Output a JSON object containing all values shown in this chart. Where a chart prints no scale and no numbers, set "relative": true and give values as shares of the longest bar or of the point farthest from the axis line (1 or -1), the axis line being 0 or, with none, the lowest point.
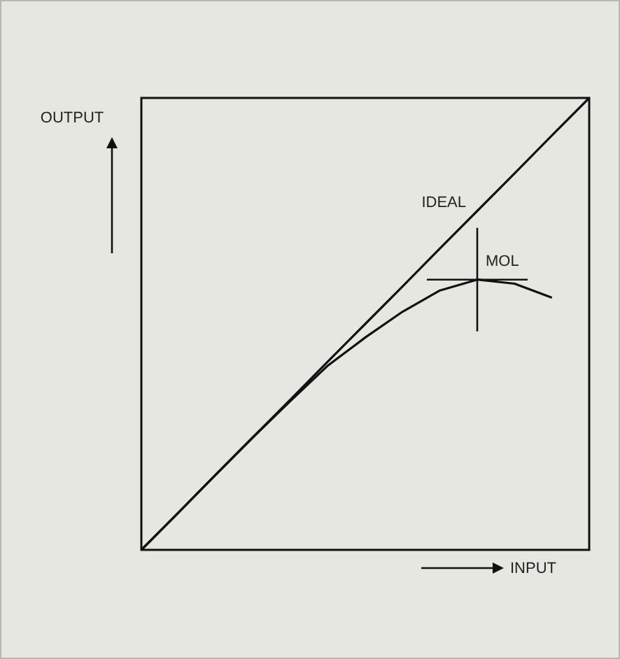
{
  "chart_data": {
    "type": "line",
    "relative": true,
    "xlabel": "INPUT",
    "ylabel": "OUTPUT",
    "categories": [
      null,
      null,
      null,
      null,
      null,
      null,
      null,
      null,
      null,
      null,
      null,
      null,
      null
    ],
    "series": [
      {
        "name": "IDEAL",
        "color": "#111111",
        "values": [
          0,
          0.083,
          0.167,
          0.25,
          0.333,
          0.417,
          0.5,
          0.583,
          0.667,
          0.75,
          0.833,
          0.917,
          1
        ]
      },
      {
        "color": "#111111",
        "values": [
          0,
          0.083,
          0.167,
          0.25,
          0.33,
          0.408,
          0.47,
          0.527,
          0.574,
          0.598,
          0.589,
          0.558,
          null
        ]
      }
    ],
    "annotations": [
      {
        "text": "MOL",
        "y": 0.598
      }
    ],
    "legend": false,
    "grid": false
  }
}
